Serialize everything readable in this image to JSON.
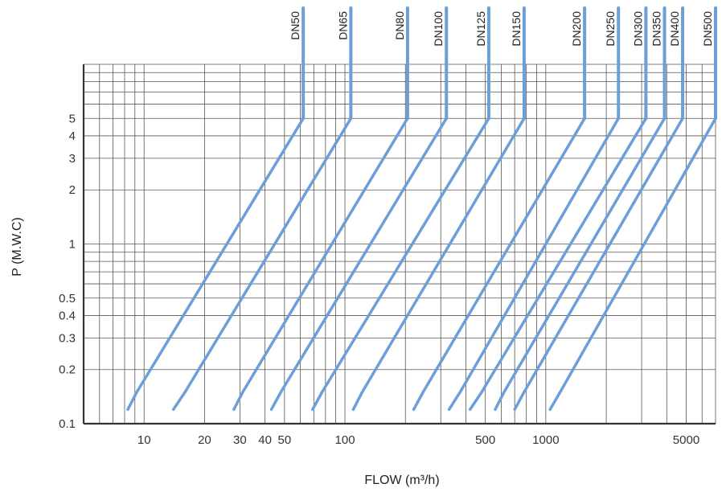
{
  "chart_data": {
    "type": "line",
    "xlabel": "FLOW (m³/h)",
    "ylabel": "P (M.W.C)",
    "x_scale": "log",
    "y_scale": "log",
    "xlim": [
      5,
      7000
    ],
    "ylim": [
      0.1,
      10
    ],
    "grid": true,
    "line_color": "#6a9fd8",
    "x_ticks": [
      10,
      20,
      30,
      40,
      50,
      100,
      500,
      1000,
      5000
    ],
    "x_tick_labels": [
      "10",
      "20",
      "30",
      "40",
      "50",
      "100",
      "500",
      "1000",
      "5000"
    ],
    "y_ticks": [
      0.1,
      0.2,
      0.3,
      0.4,
      0.5,
      1,
      2,
      3,
      4,
      5
    ],
    "y_tick_labels": [
      "0.1",
      "0.2",
      "0.3",
      "0.4",
      "0.5",
      "1",
      "2",
      "3",
      "4",
      "5"
    ],
    "series": [
      {
        "name": "DN50",
        "points": [
          [
            8.3,
            0.12
          ],
          [
            9.2,
            0.15
          ],
          [
            62,
            5
          ]
        ]
      },
      {
        "name": "DN65",
        "points": [
          [
            14,
            0.12
          ],
          [
            16,
            0.15
          ],
          [
            107,
            5
          ]
        ]
      },
      {
        "name": "DN80",
        "points": [
          [
            28,
            0.12
          ],
          [
            31,
            0.15
          ],
          [
            205,
            5
          ]
        ]
      },
      {
        "name": "DN100",
        "points": [
          [
            43,
            0.12
          ],
          [
            48,
            0.15
          ],
          [
            320,
            5
          ]
        ]
      },
      {
        "name": "DN125",
        "points": [
          [
            69,
            0.12
          ],
          [
            77,
            0.15
          ],
          [
            520,
            5
          ]
        ]
      },
      {
        "name": "DN150",
        "points": [
          [
            110,
            0.12
          ],
          [
            122,
            0.15
          ],
          [
            780,
            5
          ]
        ]
      },
      {
        "name": "DN200",
        "points": [
          [
            220,
            0.12
          ],
          [
            245,
            0.15
          ],
          [
            1560,
            5
          ]
        ]
      },
      {
        "name": "DN250",
        "points": [
          [
            330,
            0.12
          ],
          [
            375,
            0.15
          ],
          [
            2300,
            5
          ]
        ]
      },
      {
        "name": "DN300",
        "points": [
          [
            420,
            0.12
          ],
          [
            480,
            0.15
          ],
          [
            3150,
            5
          ]
        ]
      },
      {
        "name": "DN350",
        "points": [
          [
            560,
            0.12
          ],
          [
            620,
            0.15
          ],
          [
            3900,
            5
          ]
        ]
      },
      {
        "name": "DN400",
        "points": [
          [
            700,
            0.12
          ],
          [
            780,
            0.15
          ],
          [
            4800,
            5
          ]
        ]
      },
      {
        "name": "DN500",
        "points": [
          [
            1050,
            0.12
          ],
          [
            1180,
            0.15
          ],
          [
            7000,
            5
          ]
        ]
      }
    ]
  }
}
